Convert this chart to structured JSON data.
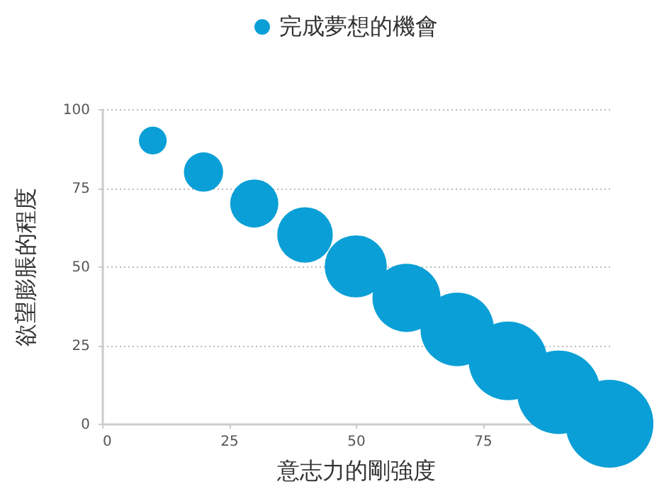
{
  "chart_data": {
    "type": "bubble",
    "xlabel": "意志力的剛強度",
    "ylabel": "欲望膨脹的程度",
    "x": [
      10,
      20,
      30,
      40,
      50,
      60,
      70,
      80,
      90,
      100
    ],
    "series": [
      {
        "name": "完成夢想的機會",
        "color": "#0a9fd6",
        "values": [
          90,
          80,
          70,
          60,
          50,
          40,
          30,
          20,
          10,
          0
        ],
        "sizes": [
          0.1,
          0.2,
          0.3,
          0.4,
          0.5,
          0.6,
          0.7,
          0.8,
          0.9,
          1
        ]
      }
    ],
    "xlim": [
      0,
      100
    ],
    "xticks": [
      0,
      25,
      50,
      75
    ],
    "ylim": [
      0,
      100
    ],
    "yticks": [
      0,
      25,
      50,
      75,
      100
    ],
    "grid": "y",
    "legend": "top"
  }
}
